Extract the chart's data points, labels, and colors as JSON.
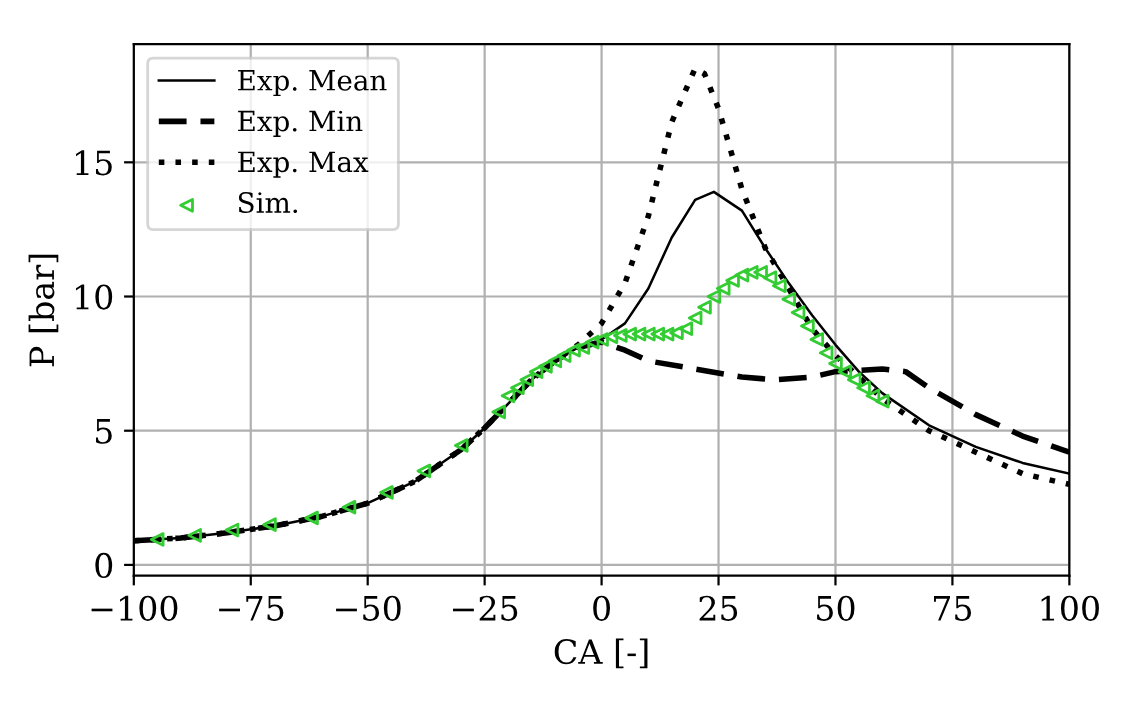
{
  "chart_data": {
    "type": "line",
    "xlabel": "CA [-]",
    "ylabel": "P [bar]",
    "xlim": [
      -100,
      100
    ],
    "xticks": [
      -100,
      -75,
      -50,
      -25,
      0,
      25,
      50,
      75,
      100
    ],
    "ylim": [
      -0.4,
      19.4
    ],
    "yticks": [
      0,
      5,
      10,
      15
    ],
    "grid": true,
    "legend": "top left",
    "series": [
      {
        "name": "Exp. Mean",
        "color": "#000000",
        "line_style": "solid",
        "x": [
          -100,
          -90,
          -80,
          -70,
          -60,
          -50,
          -40,
          -30,
          -25,
          -20,
          -15,
          -10,
          -5,
          0,
          5,
          10,
          15,
          20,
          24,
          30,
          35,
          40,
          45,
          50,
          55,
          60,
          70,
          80,
          90,
          100
        ],
        "values": [
          0.9,
          1.0,
          1.2,
          1.45,
          1.8,
          2.3,
          3.1,
          4.3,
          5.1,
          6.0,
          6.9,
          7.6,
          8.1,
          8.4,
          9.0,
          10.3,
          12.2,
          13.6,
          13.9,
          13.2,
          11.8,
          10.5,
          9.3,
          8.2,
          7.2,
          6.4,
          5.2,
          4.4,
          3.8,
          3.4
        ]
      },
      {
        "name": "Exp. Min",
        "color": "#000000",
        "line_style": "dashed",
        "x": [
          -100,
          -90,
          -80,
          -70,
          -60,
          -50,
          -40,
          -30,
          -25,
          -20,
          -15,
          -10,
          -5,
          0,
          5,
          10,
          20,
          30,
          37,
          45,
          50,
          60,
          65,
          70,
          80,
          90,
          100
        ],
        "values": [
          0.9,
          1.0,
          1.2,
          1.45,
          1.8,
          2.3,
          3.1,
          4.3,
          5.1,
          6.0,
          6.9,
          7.6,
          8.1,
          8.3,
          8.0,
          7.6,
          7.3,
          7.0,
          6.9,
          7.0,
          7.2,
          7.3,
          7.2,
          6.6,
          5.6,
          4.8,
          4.2
        ]
      },
      {
        "name": "Exp. Max",
        "color": "#000000",
        "line_style": "dotted",
        "x": [
          -100,
          -90,
          -80,
          -70,
          -60,
          -50,
          -40,
          -30,
          -25,
          -20,
          -15,
          -10,
          -5,
          0,
          5,
          10,
          15,
          20,
          22,
          25,
          30,
          35,
          40,
          45,
          50,
          55,
          60,
          70,
          80,
          90,
          100
        ],
        "values": [
          0.9,
          1.0,
          1.2,
          1.45,
          1.8,
          2.3,
          3.1,
          4.3,
          5.1,
          6.0,
          6.9,
          7.6,
          8.2,
          9.0,
          10.5,
          13.0,
          16.5,
          18.5,
          18.3,
          17.0,
          14.0,
          11.8,
          10.3,
          8.8,
          7.8,
          7.0,
          6.2,
          5.0,
          4.2,
          3.4,
          3.0
        ]
      },
      {
        "name": "Sim.",
        "type": "scatter",
        "marker": "triangle",
        "color": "#33cc33",
        "x": [
          -95,
          -87,
          -79,
          -71,
          -62,
          -54,
          -46,
          -38,
          -30,
          -22,
          -20,
          -18,
          -16,
          -14,
          -12,
          -10,
          -8,
          -6,
          -4,
          -2,
          0,
          2,
          4,
          6,
          8,
          10,
          12,
          14,
          16,
          18,
          20,
          22,
          24,
          26,
          28,
          30,
          32,
          34,
          36,
          38,
          40,
          42,
          44,
          46,
          48,
          50,
          52,
          54,
          56,
          58,
          60
        ],
        "values": [
          0.95,
          1.1,
          1.3,
          1.5,
          1.75,
          2.15,
          2.7,
          3.5,
          4.45,
          5.7,
          6.3,
          6.6,
          6.9,
          7.2,
          7.4,
          7.6,
          7.8,
          8.0,
          8.1,
          8.3,
          8.4,
          8.5,
          8.55,
          8.6,
          8.6,
          8.6,
          8.6,
          8.6,
          8.65,
          8.8,
          9.2,
          9.6,
          10.0,
          10.3,
          10.6,
          10.8,
          10.9,
          10.9,
          10.7,
          10.4,
          9.9,
          9.4,
          8.9,
          8.4,
          7.9,
          7.5,
          7.2,
          6.9,
          6.6,
          6.3,
          6.1
        ]
      }
    ]
  }
}
